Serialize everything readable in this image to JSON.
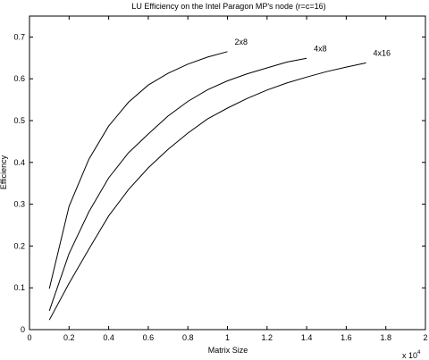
{
  "chart_data": {
    "type": "line",
    "title": "LU Efficiency on the Intel Paragon MP's node (r=c=16)",
    "xlabel": "Matrix Size",
    "ylabel": "Efficiency",
    "x_multiplier_base": "x 10",
    "x_multiplier_exp": "4",
    "xlim": [
      0,
      2
    ],
    "ylim": [
      0,
      0.75
    ],
    "x_ticks": [
      "0",
      "0.2",
      "0.4",
      "0.6",
      "0.8",
      "1",
      "1.2",
      "1.4",
      "1.6",
      "1.8",
      "2"
    ],
    "y_ticks": [
      "0",
      "0.1",
      "0.2",
      "0.3",
      "0.4",
      "0.5",
      "0.6",
      "0.7"
    ],
    "grid": false,
    "series": [
      {
        "name": "2x8",
        "x": [
          0.1,
          0.2,
          0.3,
          0.4,
          0.5,
          0.6,
          0.7,
          0.8,
          0.9,
          1.0
        ],
        "y": [
          0.098,
          0.295,
          0.408,
          0.487,
          0.544,
          0.585,
          0.613,
          0.635,
          0.652,
          0.665
        ]
      },
      {
        "name": "4x8",
        "x": [
          0.1,
          0.2,
          0.3,
          0.4,
          0.5,
          0.6,
          0.7,
          0.8,
          0.9,
          1.0,
          1.1,
          1.2,
          1.3,
          1.4
        ],
        "y": [
          0.045,
          0.182,
          0.282,
          0.363,
          0.423,
          0.468,
          0.511,
          0.546,
          0.574,
          0.595,
          0.612,
          0.626,
          0.64,
          0.649
        ]
      },
      {
        "name": "4x16",
        "x": [
          0.1,
          0.2,
          0.3,
          0.4,
          0.5,
          0.6,
          0.7,
          0.8,
          0.9,
          1.0,
          1.1,
          1.2,
          1.3,
          1.4,
          1.5,
          1.6,
          1.7
        ],
        "y": [
          0.023,
          0.111,
          0.193,
          0.272,
          0.335,
          0.387,
          0.431,
          0.47,
          0.504,
          0.53,
          0.553,
          0.573,
          0.59,
          0.604,
          0.617,
          0.628,
          0.638
        ]
      }
    ]
  }
}
